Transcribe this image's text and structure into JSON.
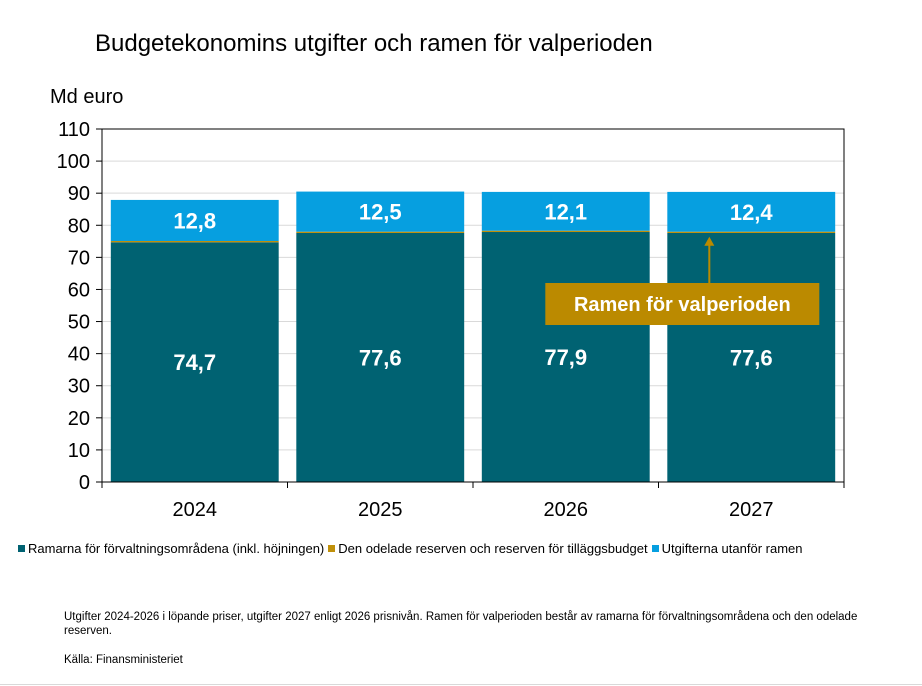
{
  "chart_data": {
    "type": "bar",
    "stacked": true,
    "title": "Budgetekonomins utgifter och ramen för valperioden",
    "ylabel": "Md euro",
    "xlabel": "",
    "ylim": [
      0,
      110
    ],
    "yticks": [
      0,
      10,
      20,
      30,
      40,
      50,
      60,
      70,
      80,
      90,
      100,
      110
    ],
    "grid": true,
    "categories": [
      "2024",
      "2025",
      "2026",
      "2027"
    ],
    "series": [
      {
        "name": "Ramarna för förvaltningsområdena (inkl. höjningen)",
        "values": [
          74.7,
          77.6,
          77.9,
          77.6
        ],
        "labels": [
          "74,7",
          "77,6",
          "77,9",
          "77,6"
        ],
        "color": "#006272"
      },
      {
        "name": "Den odelade reserven och reserven för tilläggsbudget",
        "values": [
          0.4,
          0.4,
          0.4,
          0.4
        ],
        "labels": [
          "",
          "",
          "",
          ""
        ],
        "color": "#c0900a"
      },
      {
        "name": "Utgifterna utanför ramen",
        "values": [
          12.8,
          12.5,
          12.1,
          12.4
        ],
        "labels": [
          "12,8",
          "12,5",
          "12,1",
          "12,4"
        ],
        "color": "#069fe0"
      }
    ],
    "annotation": {
      "text": "Ramen för valperioden",
      "category": "2027",
      "box_color": "#bb8a00",
      "text_color": "#ffffff"
    },
    "legend_position": "bottom"
  },
  "note": "Utgifter 2024-2026 i löpande priser, utgifter 2027 enligt 2026 prisnivån. Ramen för valperioden består av ramarna för förvaltningsområdena och den odelade reserven.",
  "source": "Källa: Finansministeriet"
}
